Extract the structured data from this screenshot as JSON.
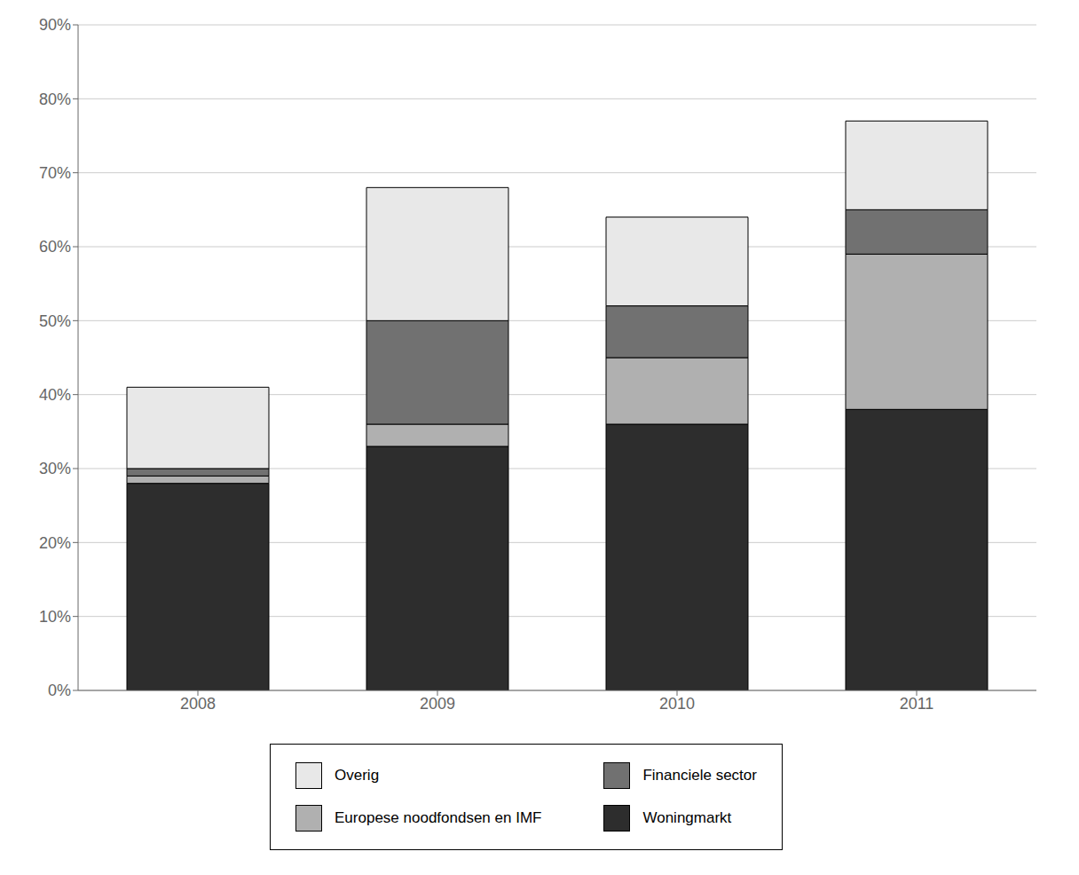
{
  "chart_data": {
    "type": "bar",
    "stacked": true,
    "categories": [
      "2008",
      "2009",
      "2010",
      "2011"
    ],
    "series": [
      {
        "name": "Woningmarkt",
        "color": "#2d2d2d",
        "values": [
          28,
          33,
          36,
          38
        ]
      },
      {
        "name": "Europese noodfondsen en IMF",
        "color": "#b0b0b0",
        "values": [
          1,
          3,
          9,
          21
        ]
      },
      {
        "name": "Financiele sector",
        "color": "#717171",
        "values": [
          1,
          14,
          7,
          6
        ]
      },
      {
        "name": "Overig",
        "color": "#e8e8e8",
        "values": [
          11,
          18,
          12,
          12
        ]
      }
    ],
    "ylim": [
      0,
      90
    ],
    "yticks": [
      {
        "value": 0,
        "label": "0%"
      },
      {
        "value": 10,
        "label": "10%"
      },
      {
        "value": 20,
        "label": "20%"
      },
      {
        "value": 30,
        "label": "30%"
      },
      {
        "value": 40,
        "label": "40%"
      },
      {
        "value": 50,
        "label": "50%"
      },
      {
        "value": 60,
        "label": "60%"
      },
      {
        "value": 70,
        "label": "70%"
      },
      {
        "value": 80,
        "label": "80%"
      },
      {
        "value": 90,
        "label": "90%"
      }
    ],
    "grid": true,
    "legend": "bottom"
  }
}
